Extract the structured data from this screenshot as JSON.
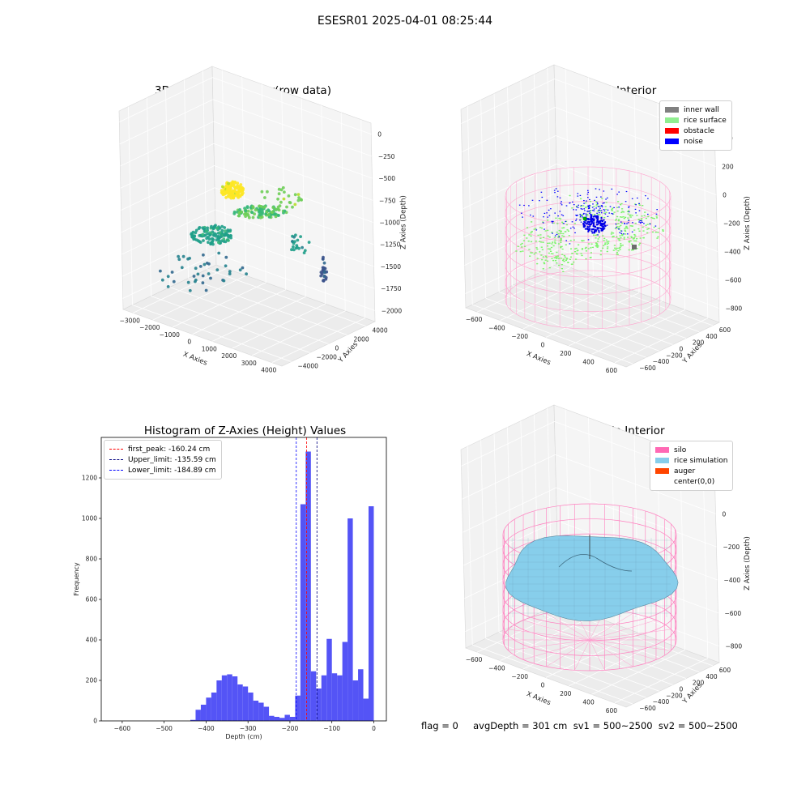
{
  "suptitle": "ESESR01 2025-04-01 08:25:44",
  "footer": "flag = 0     avgDepth = 301 cm  sv1 = 500~2500  sv2 = 500~2500",
  "colors": {
    "inner_wall": "#808080",
    "rice_surface": "#90ee90",
    "obstacle": "#ff0000",
    "noise": "#0000ff",
    "silo": "#ff69b4",
    "rice_simulation": "#87ceeb",
    "auger": "#ff4500",
    "hist_bar": "#4b4bf5",
    "first_peak": "#ff0000",
    "upper": "#000080",
    "lower": "#0000ff"
  },
  "chart_data": [
    {
      "type": "scatter",
      "title": "3D Plot of Silo Interior(row data)",
      "xlabel": "X Axies",
      "ylabel": "Y Axies",
      "zlabel": "Z Axies (Depth)",
      "x_ticks": [
        "−3000",
        "−2000",
        "−1000",
        "0",
        "1000",
        "2000",
        "3000",
        "4000"
      ],
      "y_ticks": [
        "−4000",
        "−2000",
        "0",
        "2000",
        "4000"
      ],
      "z_ticks": [
        "−2000",
        "−1750",
        "−1500",
        "−1250",
        "−1000",
        "−750",
        "−500",
        "−250",
        "0"
      ]
    },
    {
      "type": "scatter",
      "title": "3D classify of Silo Interior",
      "xlabel": "X Axies",
      "ylabel": "Y Axies",
      "zlabel": "Z Axies (Depth)",
      "x_ticks": [
        "−600",
        "−400",
        "−200",
        "0",
        "200",
        "400",
        "600"
      ],
      "y_ticks": [
        "−600",
        "−400",
        "−200",
        "0",
        "200",
        "400",
        "600"
      ],
      "z_ticks": [
        "−800",
        "−600",
        "−400",
        "−200",
        "0",
        "200",
        "400"
      ],
      "legend": [
        {
          "label": "inner wall",
          "color": "#808080"
        },
        {
          "label": "rice surface",
          "color": "#90ee90"
        },
        {
          "label": "obstacle",
          "color": "#ff0000"
        },
        {
          "label": "noise",
          "color": "#0000ff"
        }
      ]
    },
    {
      "type": "bar",
      "title": "Histogram of Z-Axies (Height) Values",
      "xlabel": "Depth (cm)",
      "ylabel": "Frequency",
      "xlim": [
        -650,
        30
      ],
      "ylim": [
        0,
        1400
      ],
      "x_ticks": [
        -600,
        -500,
        -400,
        -300,
        -200,
        -100,
        0
      ],
      "y_ticks": [
        0,
        200,
        400,
        600,
        800,
        1000,
        1200
      ],
      "bin_width": 12.5,
      "bin_starts": [
        -437.5,
        -425,
        -412.5,
        -400,
        -387.5,
        -375,
        -362.5,
        -350,
        -337.5,
        -325,
        -312.5,
        -300,
        -287.5,
        -275,
        -262.5,
        -250,
        -237.5,
        -225,
        -212.5,
        -200,
        -187.5,
        -175,
        -162.5,
        -150,
        -137.5,
        -125,
        -112.5,
        -100,
        -87.5,
        -75,
        -62.5,
        -50,
        -37.5,
        -25,
        -12.5
      ],
      "values": [
        5,
        55,
        80,
        115,
        140,
        200,
        225,
        230,
        220,
        180,
        170,
        140,
        100,
        90,
        70,
        25,
        20,
        15,
        30,
        20,
        125,
        1070,
        1330,
        245,
        160,
        225,
        405,
        235,
        225,
        390,
        1000,
        200,
        255,
        110,
        1060
      ],
      "vlines": [
        {
          "label": "first_peak: -160.24 cm",
          "x": -160.24,
          "color": "#ff0000"
        },
        {
          "label": "Upper_limit: -135.59 cm",
          "x": -135.59,
          "color": "#000080"
        },
        {
          "label": "Lower_limit: -184.89 cm",
          "x": -184.89,
          "color": "#0000ff"
        }
      ]
    },
    {
      "type": "surface",
      "title": "3D simulation of Silo Interior",
      "xlabel": "X Axies",
      "ylabel": "Y Axies",
      "zlabel": "Z Axies (Depth)",
      "x_ticks": [
        "−600",
        "−400",
        "−200",
        "0",
        "200",
        "400",
        "600"
      ],
      "y_ticks": [
        "−600",
        "−400",
        "−200",
        "0",
        "200",
        "400",
        "600"
      ],
      "z_ticks": [
        "−800",
        "−600",
        "−400",
        "−200",
        "0",
        "200"
      ],
      "legend": [
        {
          "label": "silo",
          "color": "#ff69b4"
        },
        {
          "label": "rice simulation",
          "color": "#87ceeb"
        },
        {
          "label": "auger",
          "color": "#ff4500"
        },
        {
          "label": "center(0,0)",
          "color": ""
        }
      ]
    }
  ]
}
